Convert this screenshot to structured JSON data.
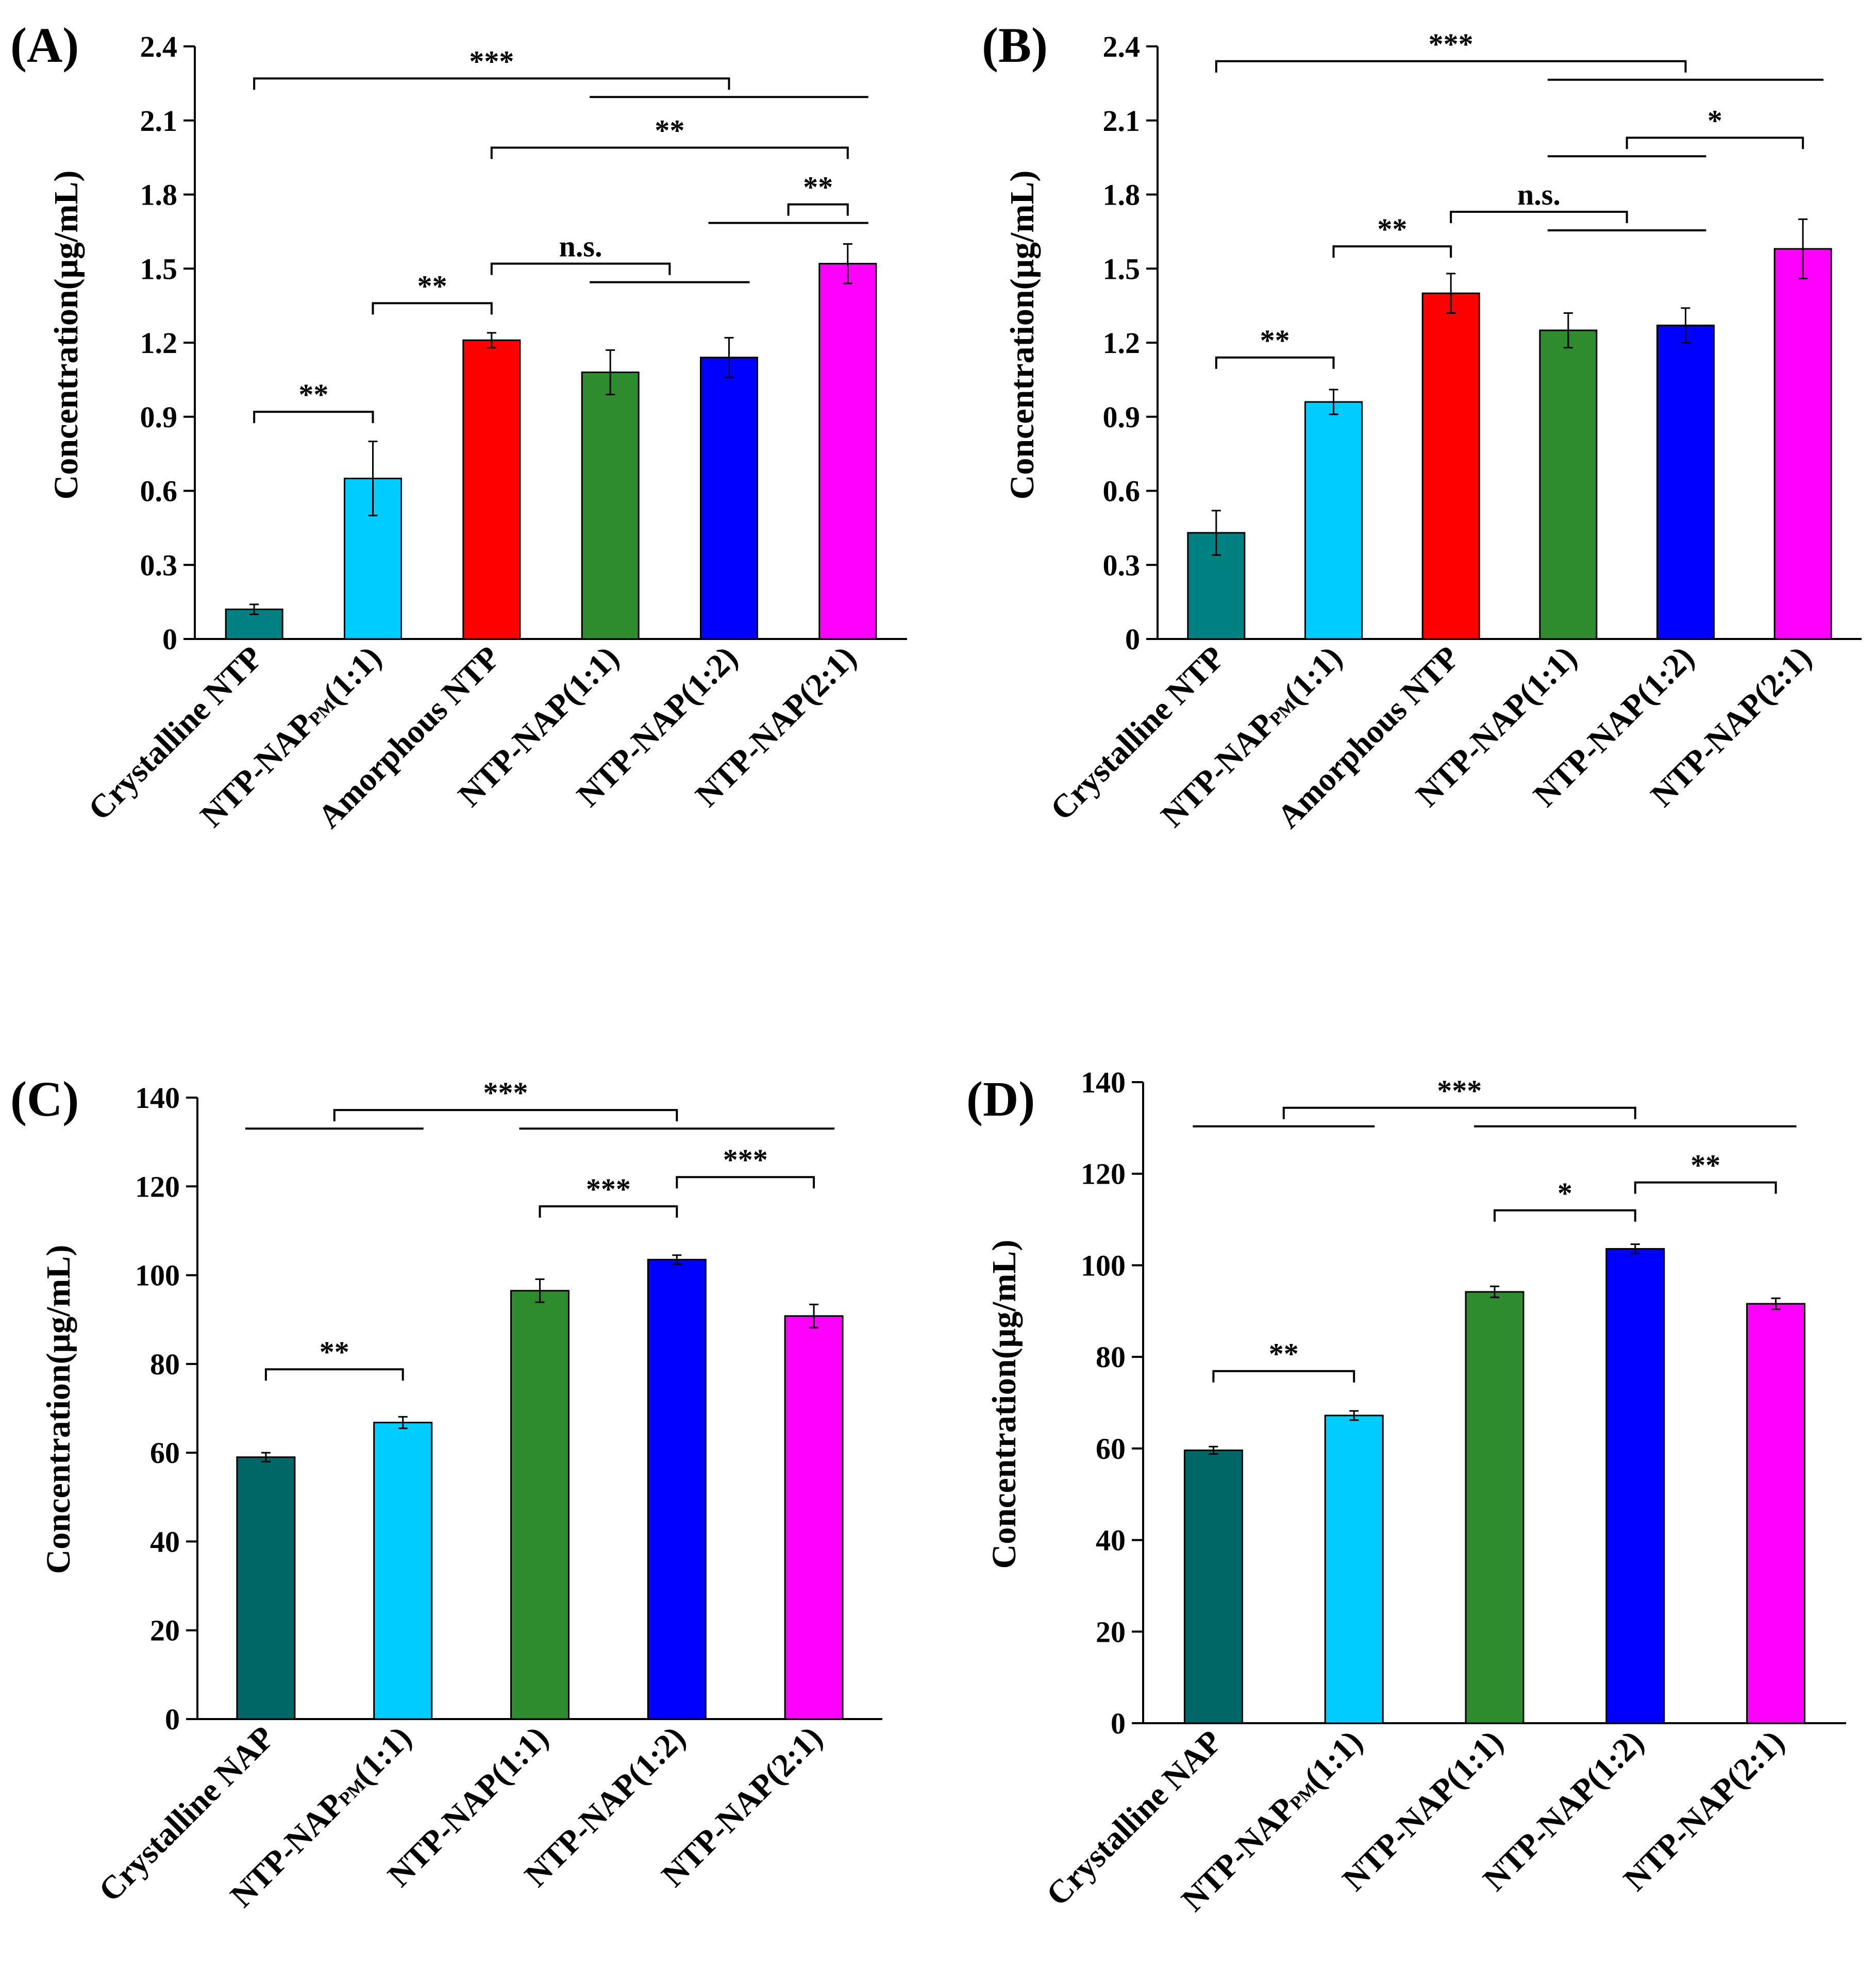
{
  "chart_data": [
    {
      "type": "bar",
      "panel_label": "(A)",
      "ylabel": "Concentration(μg/mL)",
      "ylim": [
        0,
        2.4
      ],
      "yticks": [
        "0",
        "0.3",
        "0.6",
        "0.9",
        "1.2",
        "1.5",
        "1.8",
        "2.1",
        "2.4"
      ],
      "categories": [
        {
          "main": "Crystalline NTP",
          "sub": ""
        },
        {
          "main": "NTP-NAP",
          "sub": "PM",
          "suffix": "(1:1)"
        },
        {
          "main": "Amorphous NTP",
          "sub": ""
        },
        {
          "main": "NTP-NAP(1:1)",
          "sub": ""
        },
        {
          "main": "NTP-NAP(1:2)",
          "sub": ""
        },
        {
          "main": "NTP-NAP(2:1)",
          "sub": ""
        }
      ],
      "values": [
        0.12,
        0.65,
        1.21,
        1.08,
        1.14,
        1.52
      ],
      "errors": [
        0.02,
        0.15,
        0.03,
        0.09,
        0.08,
        0.08
      ],
      "colors": [
        "#008080",
        "#00ccff",
        "#ff0000",
        "#2e8b2e",
        "#0000ff",
        "#ff00ff"
      ],
      "significance": [
        {
          "label": "**",
          "y": 0.92,
          "from": 0,
          "to": 1
        },
        {
          "label": "**",
          "y": 1.36,
          "from": 1,
          "to": 2
        },
        {
          "label": "n.s.",
          "y": 1.52,
          "from": 2,
          "to": [
            3,
            4
          ]
        },
        {
          "label": "**",
          "y": 1.76,
          "from": [
            4,
            5
          ],
          "to": 5
        },
        {
          "label": "**",
          "y": 1.99,
          "from": 2,
          "to": 5
        },
        {
          "label": "***",
          "y": 2.27,
          "from": 0,
          "to": [
            3,
            5
          ]
        }
      ]
    },
    {
      "type": "bar",
      "panel_label": "(B)",
      "ylabel": "Concentration(μg/mL)",
      "ylim": [
        0,
        2.4
      ],
      "yticks": [
        "0",
        "0.3",
        "0.6",
        "0.9",
        "1.2",
        "1.5",
        "1.8",
        "2.1",
        "2.4"
      ],
      "categories": [
        {
          "main": "Crystalline NTP",
          "sub": ""
        },
        {
          "main": "NTP-NAP",
          "sub": "PM",
          "suffix": "(1:1)"
        },
        {
          "main": "Amorphous NTP",
          "sub": ""
        },
        {
          "main": "NTP-NAP(1:1)",
          "sub": ""
        },
        {
          "main": "NTP-NAP(1:2)",
          "sub": ""
        },
        {
          "main": "NTP-NAP(2:1)",
          "sub": ""
        }
      ],
      "values": [
        0.43,
        0.96,
        1.4,
        1.25,
        1.27,
        1.58
      ],
      "errors": [
        0.09,
        0.05,
        0.08,
        0.07,
        0.07,
        0.12
      ],
      "colors": [
        "#008080",
        "#00ccff",
        "#ff0000",
        "#2e8b2e",
        "#0000ff",
        "#ff00ff"
      ],
      "significance": [
        {
          "label": "**",
          "y": 1.14,
          "from": 0,
          "to": 1
        },
        {
          "label": "**",
          "y": 1.59,
          "from": 1,
          "to": 2
        },
        {
          "label": "n.s.",
          "y": 1.73,
          "from": 2,
          "to": [
            3,
            4
          ]
        },
        {
          "label": "*",
          "y": 2.03,
          "from": [
            3,
            4
          ],
          "to": 5
        },
        {
          "label": "***",
          "y": 2.34,
          "from": 0,
          "to": [
            3,
            5
          ]
        }
      ]
    },
    {
      "type": "bar",
      "panel_label": "(C)",
      "ylabel": "Concentration(μg/mL)",
      "ylim": [
        0,
        140
      ],
      "yticks": [
        "0",
        "20",
        "40",
        "60",
        "80",
        "100",
        "120",
        "140"
      ],
      "categories": [
        {
          "main": "Crystalline NAP",
          "sub": ""
        },
        {
          "main": "NTP-NAP",
          "sub": "PM",
          "suffix": "(1:1)"
        },
        {
          "main": "NTP-NAP(1:1)",
          "sub": ""
        },
        {
          "main": "NTP-NAP(1:2)",
          "sub": ""
        },
        {
          "main": "NTP-NAP(2:1)",
          "sub": ""
        }
      ],
      "values": [
        59,
        66.8,
        96.5,
        103.5,
        90.8
      ],
      "errors": [
        1.0,
        1.3,
        2.6,
        1.0,
        2.6
      ],
      "colors": [
        "#006666",
        "#00ccff",
        "#2e8b2e",
        "#0000ff",
        "#ff00ff"
      ],
      "significance": [
        {
          "label": "**",
          "y": 78.8,
          "from": 0,
          "to": 1
        },
        {
          "label": "***",
          "y": 115.5,
          "from": 2,
          "to": 3
        },
        {
          "label": "***",
          "y": 122.1,
          "from": 3,
          "to": 4
        },
        {
          "label": "***",
          "y": 137.2,
          "from": [
            0,
            1
          ],
          "to": [
            2,
            4
          ]
        }
      ]
    },
    {
      "type": "bar",
      "panel_label": "(D)",
      "ylabel": "Concentration(μg/mL)",
      "ylim": [
        0,
        140
      ],
      "yticks": [
        "0",
        "20",
        "40",
        "60",
        "80",
        "100",
        "120",
        "140"
      ],
      "categories": [
        {
          "main": "Crystalline NAP",
          "sub": ""
        },
        {
          "main": "NTP-NAP",
          "sub": "PM",
          "suffix": "(1:1)"
        },
        {
          "main": "NTP-NAP(1:1)",
          "sub": ""
        },
        {
          "main": "NTP-NAP(1:2)",
          "sub": ""
        },
        {
          "main": "NTP-NAP(2:1)",
          "sub": ""
        }
      ],
      "values": [
        59.6,
        67.2,
        94.2,
        103.6,
        91.6
      ],
      "errors": [
        0.8,
        1.0,
        1.2,
        1.0,
        1.2
      ],
      "colors": [
        "#006666",
        "#00ccff",
        "#2e8b2e",
        "#0000ff",
        "#ff00ff"
      ],
      "significance": [
        {
          "label": "**",
          "y": 76.9,
          "from": 0,
          "to": 1
        },
        {
          "label": "*",
          "y": 112.0,
          "from": 2,
          "to": 3
        },
        {
          "label": "**",
          "y": 118.1,
          "from": 3,
          "to": 4
        },
        {
          "label": "***",
          "y": 134.4,
          "from": [
            0,
            1
          ],
          "to": [
            2,
            4
          ]
        }
      ]
    }
  ]
}
